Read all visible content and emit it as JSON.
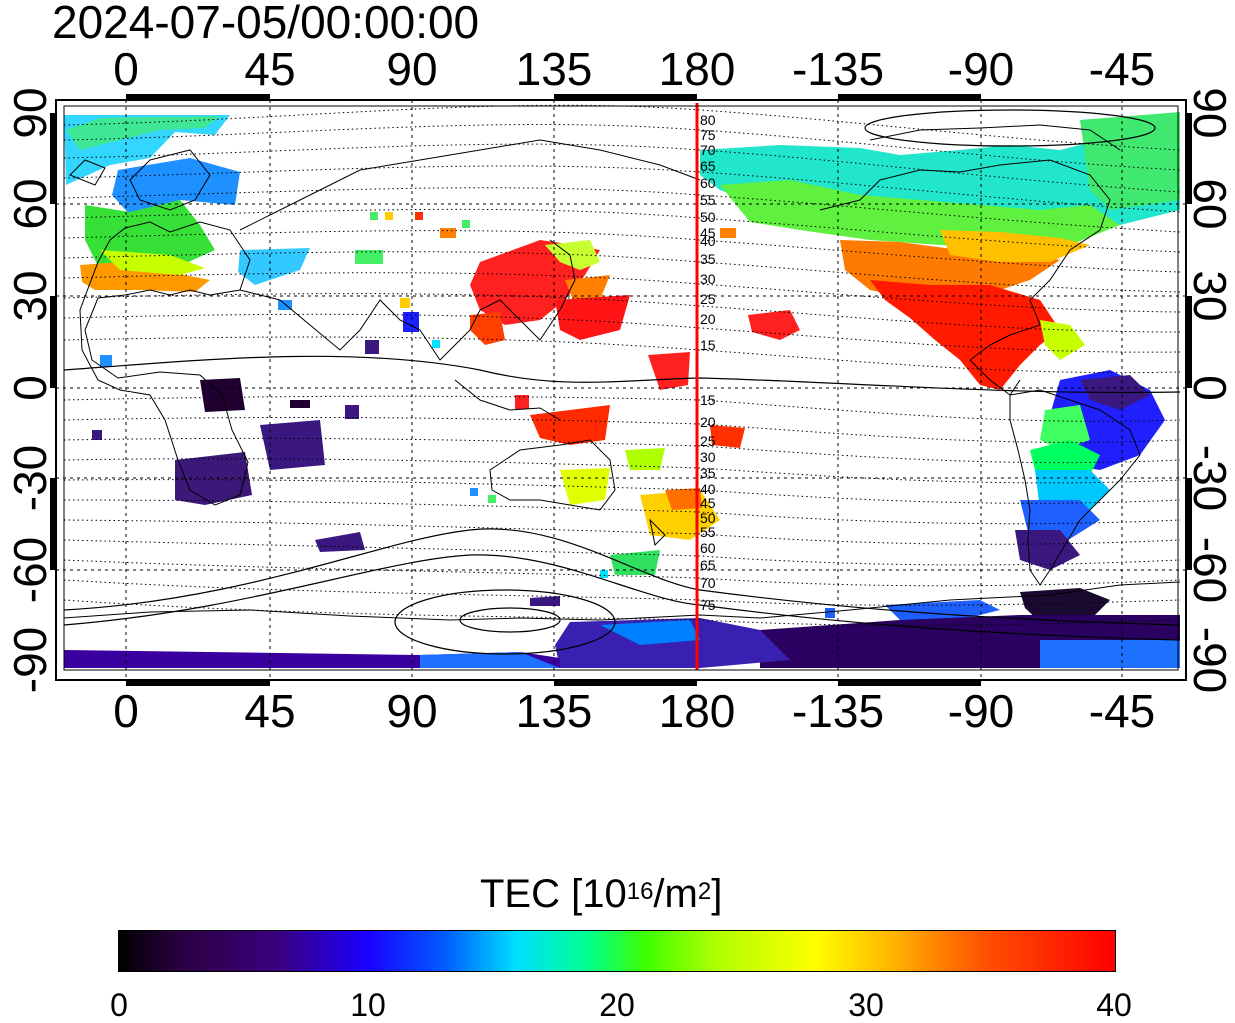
{
  "title": "2024-07-05/00:00:00",
  "x_ticks": [
    "0",
    "45",
    "90",
    "135",
    "180",
    "-135",
    "-90",
    "-45"
  ],
  "y_ticks": [
    "90",
    "60",
    "30",
    "0",
    "-30",
    "-60",
    "-90"
  ],
  "meridian_labels_north": [
    "80",
    "75",
    "70",
    "65",
    "60",
    "55",
    "50",
    "45",
    "40",
    "35",
    "30",
    "25",
    "20",
    "15"
  ],
  "meridian_labels_south": [
    "15",
    "20",
    "25",
    "30",
    "35",
    "40",
    "45",
    "50",
    "55",
    "60",
    "65",
    "70",
    "75"
  ],
  "colorbar": {
    "title_prefix": "TEC  [10",
    "title_exp1": "16",
    "title_mid": "/m",
    "title_exp2": "2",
    "title_suffix": "]",
    "ticks": [
      "0",
      "10",
      "20",
      "30",
      "40"
    ],
    "range": [
      0,
      40
    ]
  },
  "colors": {
    "frame": "#000000",
    "grid": "#000000",
    "reference_meridian": "#ff0000"
  },
  "map_extent": {
    "lon_range": [
      -20,
      340
    ],
    "lat_range": [
      -90,
      90
    ],
    "projection": "equirectangular"
  }
}
